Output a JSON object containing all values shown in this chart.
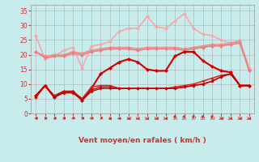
{
  "x": [
    0,
    1,
    2,
    3,
    4,
    5,
    6,
    7,
    8,
    9,
    10,
    11,
    12,
    13,
    14,
    15,
    16,
    17,
    18,
    19,
    20,
    21,
    22,
    23
  ],
  "s0": [
    26.5,
    18.5,
    19.5,
    21.5,
    22.5,
    15.5,
    23.0,
    23.5,
    24.5,
    28.0,
    29.0,
    29.0,
    33.0,
    29.5,
    29.0,
    31.5,
    34.0,
    29.0,
    27.0,
    26.5,
    25.0,
    24.0,
    25.0,
    15.5
  ],
  "s1": [
    21.0,
    19.5,
    20.0,
    20.0,
    21.0,
    20.5,
    21.5,
    22.0,
    22.5,
    22.5,
    22.5,
    22.0,
    22.5,
    22.5,
    22.5,
    22.5,
    22.0,
    22.5,
    23.0,
    23.5,
    23.5,
    24.0,
    24.5,
    15.0
  ],
  "s2": [
    21.0,
    19.0,
    19.5,
    19.5,
    20.5,
    20.0,
    21.0,
    21.5,
    22.0,
    22.0,
    22.0,
    21.5,
    22.0,
    22.0,
    22.0,
    22.0,
    21.5,
    22.0,
    22.5,
    23.0,
    23.0,
    23.5,
    24.0,
    14.5
  ],
  "s3": [
    6.0,
    9.5,
    5.5,
    7.5,
    7.5,
    4.5,
    8.5,
    13.5,
    15.5,
    17.5,
    18.5,
    17.5,
    15.0,
    14.5,
    14.5,
    19.5,
    21.0,
    21.0,
    18.0,
    16.0,
    14.5,
    14.0,
    9.5,
    9.5
  ],
  "s4": [
    5.5,
    9.5,
    6.0,
    7.5,
    7.5,
    5.0,
    9.0,
    9.5,
    9.5,
    8.5,
    8.5,
    8.5,
    8.5,
    8.5,
    8.5,
    9.0,
    9.5,
    10.0,
    11.0,
    12.0,
    13.0,
    13.5,
    9.5,
    9.5
  ],
  "s5": [
    5.5,
    9.5,
    6.0,
    7.5,
    7.5,
    5.0,
    8.0,
    9.0,
    9.0,
    8.5,
    8.5,
    8.5,
    8.5,
    8.5,
    8.5,
    8.5,
    9.0,
    9.5,
    10.0,
    11.0,
    12.5,
    13.5,
    9.5,
    9.5
  ],
  "s6": [
    5.5,
    9.5,
    5.5,
    7.0,
    7.0,
    4.5,
    7.5,
    8.5,
    8.5,
    8.5,
    8.5,
    8.5,
    8.5,
    8.5,
    8.5,
    8.5,
    9.0,
    9.5,
    10.0,
    11.0,
    12.5,
    13.5,
    9.5,
    9.5
  ],
  "colors": [
    "#f4aaaa",
    "#f09090",
    "#e88080",
    "#cc0000",
    "#dd2222",
    "#cc1111",
    "#bb0000"
  ],
  "lws": [
    1.2,
    1.2,
    1.2,
    1.5,
    1.1,
    1.0,
    1.0
  ],
  "ms": [
    2.5,
    2.5,
    2.5,
    2.5,
    2.0,
    2.0,
    2.0
  ],
  "xlabel": "Vent moyen/en rafales ( km/h )",
  "xlim": [
    -0.5,
    23.5
  ],
  "ylim": [
    0,
    37
  ],
  "yticks": [
    0,
    5,
    10,
    15,
    20,
    25,
    30,
    35
  ],
  "xticks": [
    0,
    1,
    2,
    3,
    4,
    5,
    6,
    7,
    8,
    9,
    10,
    11,
    12,
    13,
    14,
    15,
    16,
    17,
    18,
    19,
    20,
    21,
    22,
    23
  ],
  "bg_color": "#c8ecec",
  "grid_color": "#b0b0b0",
  "arrow_color": "#cc3333",
  "tick_color": "#cc3333",
  "label_color": "#cc3333"
}
